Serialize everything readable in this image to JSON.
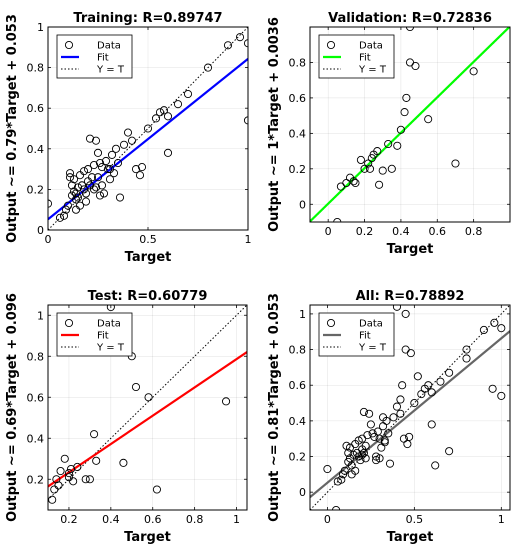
{
  "chart_data": [
    {
      "type": "scatter",
      "title": "Training: R=0.89747",
      "xlabel": "Target",
      "ylabel": "Output ~= 0.79*Target + 0.053",
      "xlim": [
        0,
        1
      ],
      "ylim": [
        0,
        1
      ],
      "xticks": [
        0,
        0.5,
        1
      ],
      "xtick_labels": [
        "0",
        "0.5",
        "1"
      ],
      "yticks": [
        0,
        0.2,
        0.4,
        0.6,
        0.8,
        1
      ],
      "ytick_labels": [
        "0",
        "0.2",
        "0.4",
        "0.6",
        "0.8",
        "1"
      ],
      "grid": true,
      "legend": {
        "placement": "top-left",
        "entries": [
          "Data",
          "Fit",
          "Y = T"
        ]
      },
      "fit": {
        "slope": 0.79,
        "intercept": 0.053,
        "color": "#0000ff"
      },
      "points": [
        [
          0.0,
          0.13
        ],
        [
          0.06,
          0.06
        ],
        [
          0.08,
          0.07
        ],
        [
          0.09,
          0.1
        ],
        [
          0.1,
          0.12
        ],
        [
          0.11,
          0.26
        ],
        [
          0.11,
          0.28
        ],
        [
          0.12,
          0.17
        ],
        [
          0.12,
          0.22
        ],
        [
          0.13,
          0.25
        ],
        [
          0.13,
          0.19
        ],
        [
          0.14,
          0.15
        ],
        [
          0.14,
          0.18
        ],
        [
          0.15,
          0.21
        ],
        [
          0.15,
          0.16
        ],
        [
          0.16,
          0.12
        ],
        [
          0.16,
          0.27
        ],
        [
          0.17,
          0.22
        ],
        [
          0.18,
          0.2
        ],
        [
          0.18,
          0.29
        ],
        [
          0.19,
          0.18
        ],
        [
          0.2,
          0.24
        ],
        [
          0.2,
          0.3
        ],
        [
          0.21,
          0.22
        ],
        [
          0.21,
          0.45
        ],
        [
          0.22,
          0.26
        ],
        [
          0.23,
          0.32
        ],
        [
          0.23,
          0.2
        ],
        [
          0.24,
          0.44
        ],
        [
          0.24,
          0.21
        ],
        [
          0.25,
          0.38
        ],
        [
          0.25,
          0.26
        ],
        [
          0.26,
          0.33
        ],
        [
          0.27,
          0.31
        ],
        [
          0.27,
          0.22
        ],
        [
          0.28,
          0.18
        ],
        [
          0.29,
          0.34
        ],
        [
          0.3,
          0.3
        ],
        [
          0.31,
          0.25
        ],
        [
          0.32,
          0.37
        ],
        [
          0.33,
          0.28
        ],
        [
          0.34,
          0.4
        ],
        [
          0.35,
          0.33
        ],
        [
          0.36,
          0.16
        ],
        [
          0.38,
          0.42
        ],
        [
          0.4,
          0.48
        ],
        [
          0.42,
          0.44
        ],
        [
          0.44,
          0.3
        ],
        [
          0.46,
          0.27
        ],
        [
          0.47,
          0.31
        ],
        [
          0.5,
          0.5
        ],
        [
          0.54,
          0.55
        ],
        [
          0.56,
          0.58
        ],
        [
          0.58,
          0.59
        ],
        [
          0.6,
          0.56
        ],
        [
          0.6,
          0.38
        ],
        [
          0.65,
          0.62
        ],
        [
          0.7,
          0.67
        ],
        [
          0.8,
          0.8
        ],
        [
          0.9,
          0.91
        ],
        [
          0.96,
          0.95
        ],
        [
          1.0,
          0.92
        ],
        [
          1.0,
          0.54
        ],
        [
          0.14,
          0.1
        ],
        [
          0.19,
          0.14
        ],
        [
          0.31,
          0.3
        ],
        [
          0.26,
          0.17
        ]
      ]
    },
    {
      "type": "scatter",
      "title": "Validation: R=0.72836",
      "xlabel": "Target",
      "ylabel": "Output ~= 1*Target + 0.0036",
      "xlim": [
        -0.1,
        1
      ],
      "ylim": [
        -0.1,
        1
      ],
      "xticks": [
        0,
        0.2,
        0.4,
        0.6,
        0.8
      ],
      "xtick_labels": [
        "0",
        "0.2",
        "0.4",
        "0.6",
        "0.8"
      ],
      "yticks": [
        0,
        0.2,
        0.4,
        0.6,
        0.8
      ],
      "ytick_labels": [
        "0",
        "0.2",
        "0.4",
        "0.6",
        "0.8"
      ],
      "grid": true,
      "legend": {
        "placement": "top-left",
        "entries": [
          "Data",
          "Fit",
          "Y = T"
        ]
      },
      "fit": {
        "slope": 1,
        "intercept": 0.0036,
        "color": "#00ff00"
      },
      "points": [
        [
          0.05,
          -0.1
        ],
        [
          0.07,
          0.1
        ],
        [
          0.1,
          0.12
        ],
        [
          0.12,
          0.15
        ],
        [
          0.14,
          0.13
        ],
        [
          0.15,
          0.12
        ],
        [
          0.18,
          0.25
        ],
        [
          0.2,
          0.2
        ],
        [
          0.22,
          0.23
        ],
        [
          0.23,
          0.2
        ],
        [
          0.24,
          0.26
        ],
        [
          0.25,
          0.28
        ],
        [
          0.27,
          0.3
        ],
        [
          0.3,
          0.19
        ],
        [
          0.33,
          0.34
        ],
        [
          0.35,
          0.2
        ],
        [
          0.38,
          0.33
        ],
        [
          0.4,
          0.42
        ],
        [
          0.42,
          0.52
        ],
        [
          0.43,
          0.6
        ],
        [
          0.45,
          0.8
        ],
        [
          0.48,
          0.78
        ],
        [
          0.45,
          1.0
        ],
        [
          0.55,
          0.48
        ],
        [
          0.7,
          0.23
        ],
        [
          0.8,
          0.75
        ],
        [
          0.28,
          0.11
        ]
      ]
    },
    {
      "type": "scatter",
      "title": "Test: R=0.60779",
      "xlabel": "Target",
      "ylabel": "Output ~= 0.69*Target + 0.096",
      "xlim": [
        0.1,
        1.05
      ],
      "ylim": [
        0.05,
        1.05
      ],
      "xticks": [
        0.2,
        0.4,
        0.6,
        0.8,
        1
      ],
      "xtick_labels": [
        "0.2",
        "0.4",
        "0.6",
        "0.8",
        "1"
      ],
      "yticks": [
        0.2,
        0.4,
        0.6,
        0.8,
        1
      ],
      "ytick_labels": [
        "0.2",
        "0.4",
        "0.6",
        "0.8",
        "1"
      ],
      "grid": true,
      "legend": {
        "placement": "top-left",
        "entries": [
          "Data",
          "Fit",
          "Y = T"
        ]
      },
      "fit": {
        "slope": 0.69,
        "intercept": 0.096,
        "color": "#ff0000"
      },
      "points": [
        [
          0.12,
          0.1
        ],
        [
          0.13,
          0.15
        ],
        [
          0.14,
          0.2
        ],
        [
          0.16,
          0.24
        ],
        [
          0.18,
          0.3
        ],
        [
          0.2,
          0.21
        ],
        [
          0.21,
          0.25
        ],
        [
          0.22,
          0.19
        ],
        [
          0.24,
          0.26
        ],
        [
          0.28,
          0.2
        ],
        [
          0.3,
          0.2
        ],
        [
          0.32,
          0.42
        ],
        [
          0.33,
          0.29
        ],
        [
          0.4,
          1.04
        ],
        [
          0.46,
          0.28
        ],
        [
          0.5,
          0.8
        ],
        [
          0.52,
          0.65
        ],
        [
          0.58,
          0.6
        ],
        [
          0.62,
          0.15
        ],
        [
          0.95,
          0.58
        ],
        [
          0.2,
          0.23
        ],
        [
          0.15,
          0.17
        ]
      ]
    },
    {
      "type": "scatter",
      "title": "All: R=0.78892",
      "xlabel": "Target",
      "ylabel": "Output ~= 0.81*Target + 0.053",
      "xlim": [
        -0.1,
        1.05
      ],
      "ylim": [
        -0.1,
        1.05
      ],
      "xticks": [
        0,
        0.5,
        1
      ],
      "xtick_labels": [
        "0",
        "0.5",
        "1"
      ],
      "yticks": [
        0,
        0.2,
        0.4,
        0.6,
        0.8,
        1
      ],
      "ytick_labels": [
        "0",
        "0.2",
        "0.4",
        "0.6",
        "0.8",
        "1"
      ],
      "grid": true,
      "legend": {
        "placement": "top-left",
        "entries": [
          "Data",
          "Fit",
          "Y = T"
        ]
      },
      "fit": {
        "slope": 0.81,
        "intercept": 0.053,
        "color": "#666666"
      },
      "points": [
        [
          0.0,
          0.13
        ],
        [
          0.05,
          -0.1
        ],
        [
          0.06,
          0.06
        ],
        [
          0.08,
          0.07
        ],
        [
          0.09,
          0.1
        ],
        [
          0.1,
          0.12
        ],
        [
          0.11,
          0.26
        ],
        [
          0.12,
          0.17
        ],
        [
          0.12,
          0.22
        ],
        [
          0.13,
          0.25
        ],
        [
          0.13,
          0.19
        ],
        [
          0.14,
          0.15
        ],
        [
          0.15,
          0.21
        ],
        [
          0.16,
          0.12
        ],
        [
          0.16,
          0.27
        ],
        [
          0.17,
          0.22
        ],
        [
          0.18,
          0.2
        ],
        [
          0.18,
          0.29
        ],
        [
          0.19,
          0.18
        ],
        [
          0.2,
          0.24
        ],
        [
          0.2,
          0.3
        ],
        [
          0.21,
          0.22
        ],
        [
          0.21,
          0.45
        ],
        [
          0.22,
          0.26
        ],
        [
          0.23,
          0.32
        ],
        [
          0.24,
          0.44
        ],
        [
          0.25,
          0.38
        ],
        [
          0.26,
          0.33
        ],
        [
          0.27,
          0.31
        ],
        [
          0.28,
          0.18
        ],
        [
          0.29,
          0.34
        ],
        [
          0.3,
          0.3
        ],
        [
          0.31,
          0.25
        ],
        [
          0.32,
          0.37
        ],
        [
          0.33,
          0.28
        ],
        [
          0.34,
          0.4
        ],
        [
          0.35,
          0.33
        ],
        [
          0.36,
          0.16
        ],
        [
          0.38,
          0.42
        ],
        [
          0.4,
          0.48
        ],
        [
          0.42,
          0.44
        ],
        [
          0.44,
          0.3
        ],
        [
          0.45,
          0.8
        ],
        [
          0.46,
          0.27
        ],
        [
          0.47,
          0.31
        ],
        [
          0.48,
          0.78
        ],
        [
          0.4,
          1.04
        ],
        [
          0.45,
          1.0
        ],
        [
          0.5,
          0.5
        ],
        [
          0.52,
          0.65
        ],
        [
          0.54,
          0.55
        ],
        [
          0.56,
          0.58
        ],
        [
          0.58,
          0.6
        ],
        [
          0.6,
          0.56
        ],
        [
          0.6,
          0.38
        ],
        [
          0.62,
          0.15
        ],
        [
          0.65,
          0.62
        ],
        [
          0.7,
          0.23
        ],
        [
          0.7,
          0.67
        ],
        [
          0.8,
          0.8
        ],
        [
          0.8,
          0.75
        ],
        [
          0.9,
          0.91
        ],
        [
          0.95,
          0.58
        ],
        [
          0.96,
          0.95
        ],
        [
          1.0,
          0.92
        ],
        [
          1.0,
          0.54
        ],
        [
          0.14,
          0.1
        ],
        [
          0.2,
          0.21
        ],
        [
          0.22,
          0.19
        ],
        [
          0.28,
          0.2
        ],
        [
          0.32,
          0.42
        ],
        [
          0.33,
          0.29
        ],
        [
          0.43,
          0.6
        ],
        [
          0.42,
          0.52
        ],
        [
          0.3,
          0.19
        ]
      ]
    }
  ],
  "colors": {
    "data_marker": "#000000",
    "identity_line": "#000000",
    "axes_box": "#000000"
  }
}
